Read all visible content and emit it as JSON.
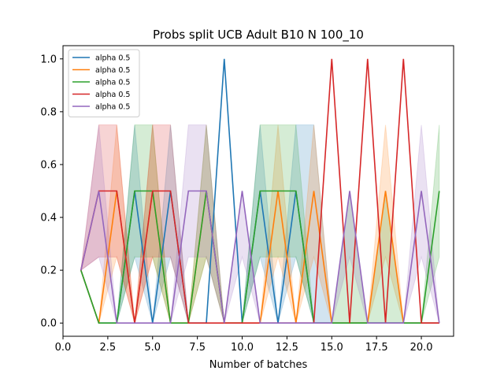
{
  "chart_data": {
    "type": "line",
    "title": "Probs split UCB Adult B10 N 100_10",
    "xlabel": "Number of batches",
    "ylabel": "",
    "xlim": [
      0.0,
      21.8
    ],
    "ylim": [
      -0.05,
      1.05
    ],
    "xticks": [
      0.0,
      2.5,
      5.0,
      7.5,
      10.0,
      12.5,
      15.0,
      17.5,
      20.0
    ],
    "xtick_labels": [
      "0.0",
      "2.5",
      "5.0",
      "7.5",
      "10.0",
      "12.5",
      "15.0",
      "17.5",
      "20.0"
    ],
    "yticks": [
      0.0,
      0.2,
      0.4,
      0.6,
      0.8,
      1.0
    ],
    "ytick_labels": [
      "0.0",
      "0.2",
      "0.4",
      "0.6",
      "0.8",
      "1.0"
    ],
    "legend_position": "top-left",
    "x": [
      1,
      2,
      3,
      4,
      5,
      6,
      7,
      8,
      9,
      10,
      11,
      12,
      13,
      14,
      15,
      16,
      17,
      18,
      19,
      20,
      21
    ],
    "series": [
      {
        "name": "alpha 0.5",
        "color": "#1f77b4",
        "values": [
          0.2,
          0.0,
          0.0,
          0.5,
          0.0,
          0.5,
          0.0,
          0.0,
          1.0,
          0.0,
          0.5,
          0.0,
          0.5,
          0.0,
          0.0,
          0.0,
          0.0,
          0.0,
          0.0,
          0.0,
          0.0
        ],
        "band_lower": [
          0.2,
          0.0,
          0.0,
          0.25,
          0.0,
          0.25,
          0.0,
          0.0,
          1.0,
          0.0,
          0.25,
          0.0,
          0.25,
          0.0,
          0.0,
          0.0,
          0.0,
          0.0,
          0.0,
          0.0,
          0.0
        ],
        "band_upper": [
          0.2,
          0.0,
          0.0,
          0.75,
          0.0,
          0.75,
          0.0,
          0.0,
          1.0,
          0.0,
          0.75,
          0.0,
          0.75,
          0.75,
          0.0,
          0.0,
          0.0,
          0.0,
          0.0,
          0.0,
          0.0
        ]
      },
      {
        "name": "alpha 0.5",
        "color": "#ff7f0e",
        "values": [
          0.2,
          0.0,
          0.5,
          0.0,
          0.5,
          0.0,
          0.0,
          0.5,
          0.0,
          0.0,
          0.0,
          0.5,
          0.0,
          0.5,
          0.0,
          0.0,
          0.0,
          0.5,
          0.0,
          0.0,
          0.0
        ],
        "band_lower": [
          0.2,
          0.0,
          0.25,
          0.0,
          0.25,
          0.0,
          0.0,
          0.25,
          0.0,
          0.0,
          0.0,
          0.25,
          0.0,
          0.25,
          0.0,
          0.0,
          0.0,
          0.25,
          0.0,
          0.0,
          0.0
        ],
        "band_upper": [
          0.2,
          0.0,
          0.75,
          0.0,
          0.75,
          0.0,
          0.0,
          0.75,
          0.0,
          0.0,
          0.0,
          0.75,
          0.0,
          0.75,
          0.0,
          0.0,
          0.0,
          0.75,
          0.0,
          0.0,
          0.0
        ]
      },
      {
        "name": "alpha 0.5",
        "color": "#2ca02c",
        "values": [
          0.2,
          0.0,
          0.0,
          0.5,
          0.5,
          0.0,
          0.0,
          0.5,
          0.0,
          0.0,
          0.5,
          0.5,
          0.5,
          0.0,
          0.0,
          0.0,
          0.0,
          0.0,
          0.0,
          0.0,
          0.5
        ],
        "band_lower": [
          0.2,
          0.0,
          0.0,
          0.25,
          0.25,
          0.0,
          0.0,
          0.25,
          0.0,
          0.0,
          0.25,
          0.25,
          0.25,
          0.0,
          0.0,
          0.0,
          0.0,
          0.0,
          0.0,
          0.0,
          0.25
        ],
        "band_upper": [
          0.2,
          0.0,
          0.0,
          0.75,
          0.75,
          0.0,
          0.0,
          0.75,
          0.0,
          0.0,
          0.75,
          0.75,
          0.75,
          0.0,
          0.0,
          0.5,
          0.0,
          0.5,
          0.0,
          0.0,
          0.75
        ]
      },
      {
        "name": "alpha 0.5",
        "color": "#d62728",
        "values": [
          0.2,
          0.5,
          0.5,
          0.0,
          0.5,
          0.5,
          0.0,
          0.0,
          0.0,
          0.0,
          0.0,
          0.0,
          0.0,
          0.0,
          1.0,
          0.0,
          1.0,
          0.0,
          1.0,
          0.0,
          0.0
        ],
        "band_lower": [
          0.2,
          0.25,
          0.25,
          0.0,
          0.25,
          0.25,
          0.0,
          0.0,
          0.0,
          0.0,
          0.0,
          0.0,
          0.0,
          0.0,
          1.0,
          0.0,
          1.0,
          0.0,
          1.0,
          0.0,
          0.0
        ],
        "band_upper": [
          0.2,
          0.75,
          0.75,
          0.0,
          0.75,
          0.75,
          0.0,
          0.0,
          0.0,
          0.0,
          0.0,
          0.0,
          0.0,
          0.0,
          1.0,
          0.0,
          1.0,
          0.0,
          1.0,
          0.0,
          0.0
        ]
      },
      {
        "name": "alpha 0.5",
        "color": "#9467bd",
        "values": [
          0.2,
          0.5,
          0.0,
          0.0,
          0.0,
          0.0,
          0.5,
          0.5,
          0.0,
          0.5,
          0.0,
          0.0,
          0.0,
          0.0,
          0.0,
          0.5,
          0.0,
          0.0,
          0.0,
          0.5,
          0.0
        ],
        "band_lower": [
          0.2,
          0.25,
          0.0,
          0.0,
          0.0,
          0.0,
          0.25,
          0.25,
          0.0,
          0.25,
          0.0,
          0.0,
          0.0,
          0.0,
          0.0,
          0.25,
          0.0,
          0.0,
          0.0,
          0.25,
          0.0
        ],
        "band_upper": [
          0.2,
          0.75,
          0.0,
          0.0,
          0.0,
          0.0,
          0.75,
          0.75,
          0.0,
          0.5,
          0.0,
          0.0,
          0.0,
          0.0,
          0.0,
          0.5,
          0.0,
          0.0,
          0.0,
          0.75,
          0.0
        ]
      }
    ]
  }
}
